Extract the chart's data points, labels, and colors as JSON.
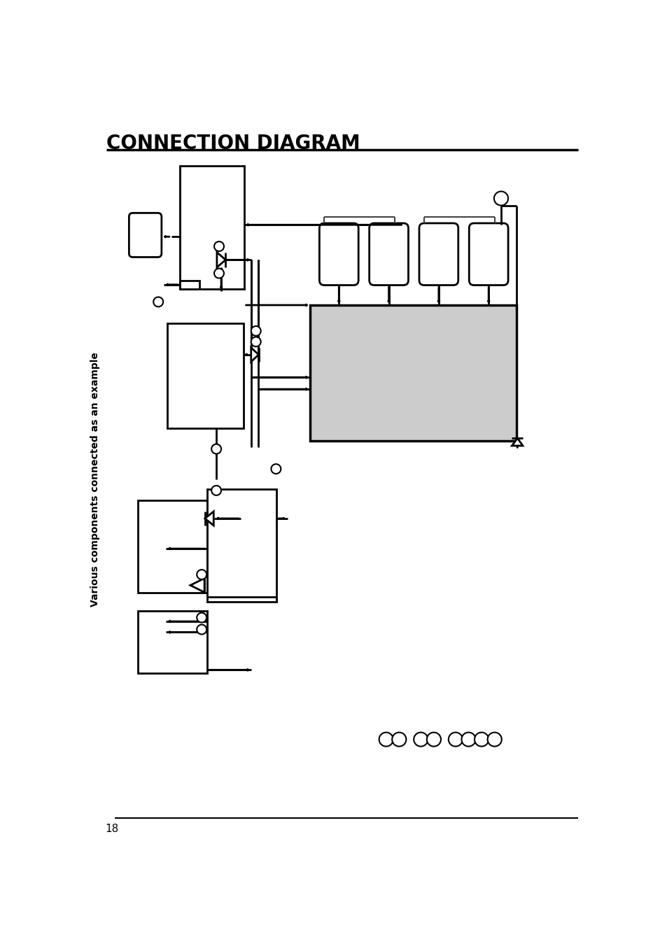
{
  "title": "CONNECTION DIAGRAM",
  "page_num": "18",
  "sidebar_text": "Various components connected as an example",
  "bg_color": "#ffffff",
  "line_color": "#000000",
  "gray_fill": "#cccccc"
}
